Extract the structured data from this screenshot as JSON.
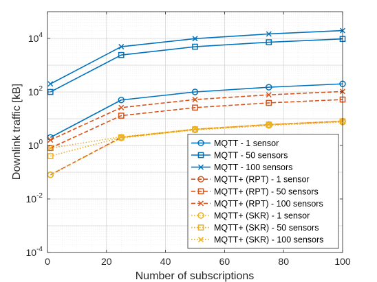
{
  "chart_data": {
    "type": "line",
    "xlabel": "Number of subscriptions",
    "ylabel": "Downlink traffic [kB]",
    "x": [
      1,
      25,
      50,
      75,
      100
    ],
    "xlim": [
      0,
      100
    ],
    "ylim": [
      0.0001,
      100000
    ],
    "yscale": "log",
    "grid": true,
    "legend_position": "bottom-right",
    "x_ticks": [
      "0",
      "20",
      "40",
      "60",
      "80",
      "100"
    ],
    "y_ticks": [
      {
        "base": "10",
        "exp": "-4"
      },
      {
        "base": "10",
        "exp": "-2"
      },
      {
        "base": "10",
        "exp": "0"
      },
      {
        "base": "10",
        "exp": "2"
      },
      {
        "base": "10",
        "exp": "4"
      }
    ],
    "colors": {
      "mqtt": "#0072BD",
      "rpt": "#D95319",
      "skr": "#EDB120"
    },
    "series": [
      {
        "name": "MQTT - 1 sensor",
        "values": [
          2,
          50,
          100,
          150,
          200
        ],
        "color": "#0072BD",
        "line": "solid",
        "marker": "circle"
      },
      {
        "name": "MQTT - 50 sensors",
        "values": [
          100,
          2400,
          4900,
          7200,
          9600
        ],
        "color": "#0072BD",
        "line": "solid",
        "marker": "square"
      },
      {
        "name": "MQTT - 100 sensors",
        "values": [
          200,
          4900,
          9800,
          14700,
          19600
        ],
        "color": "#0072BD",
        "line": "solid",
        "marker": "x"
      },
      {
        "name": "MQTT+ (RPT) - 1 sensor",
        "values": [
          0.08,
          2,
          4,
          6,
          8
        ],
        "color": "#D95319",
        "line": "dashed",
        "marker": "circle"
      },
      {
        "name": "MQTT+ (RPT) - 50 sensors",
        "values": [
          0.8,
          13,
          26,
          39,
          52
        ],
        "color": "#D95319",
        "line": "dashed",
        "marker": "square"
      },
      {
        "name": "MQTT+ (RPT) - 100 sensors",
        "values": [
          1.6,
          26,
          52,
          78,
          104
        ],
        "color": "#D95319",
        "line": "dashed",
        "marker": "x"
      },
      {
        "name": "MQTT+ (SKR) - 1 sensor",
        "values": [
          0.08,
          1.9,
          3.8,
          5.6,
          7.5
        ],
        "color": "#EDB120",
        "line": "dotted",
        "marker": "circle"
      },
      {
        "name": "MQTT+ (SKR) - 50 sensors",
        "values": [
          0.4,
          2,
          4,
          6,
          8
        ],
        "color": "#EDB120",
        "line": "dotted",
        "marker": "square"
      },
      {
        "name": "MQTT+ (SKR) - 100 sensors",
        "values": [
          0.8,
          2.1,
          4.1,
          6.1,
          8.2
        ],
        "color": "#EDB120",
        "line": "dotted",
        "marker": "x"
      }
    ]
  }
}
